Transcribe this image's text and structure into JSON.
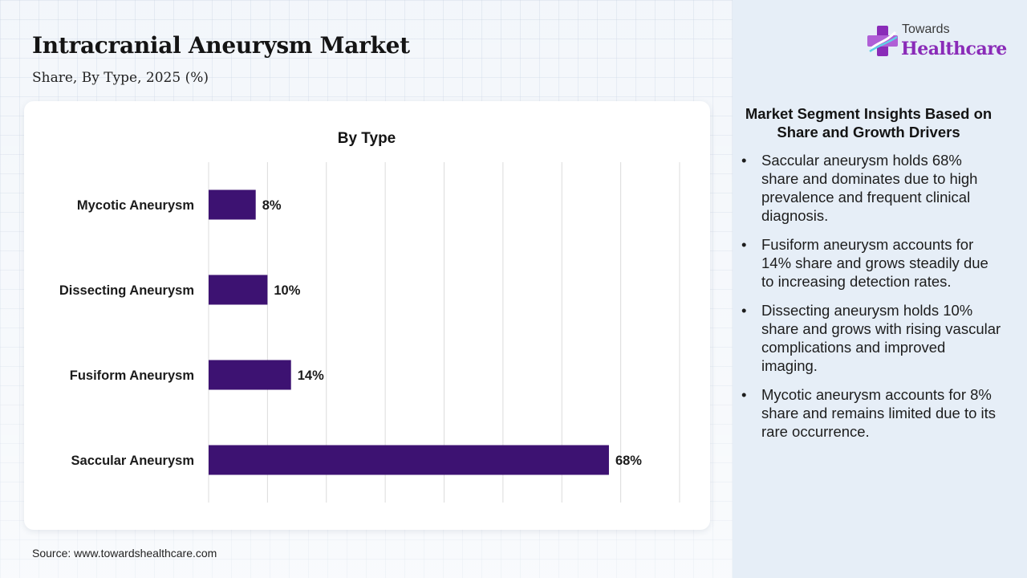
{
  "header": {
    "title": "Intracranial Aneurysm Market",
    "subtitle": "Share, By Type, 2025 (%)"
  },
  "logo": {
    "line1": "Towards",
    "line2": "Healthcare",
    "icon": "medical-cross-logo-icon"
  },
  "chart_data": {
    "type": "bar",
    "orientation": "horizontal",
    "title": "By Type",
    "categories": [
      "Mycotic Aneurysm",
      "Dissecting Aneurysm",
      "Fusiform Aneurysm",
      "Saccular Aneurysm"
    ],
    "values": [
      8,
      10,
      14,
      68
    ],
    "value_labels": [
      "8%",
      "10%",
      "14%",
      "68%"
    ],
    "xlim": [
      0,
      80
    ],
    "grid": true,
    "bar_color": "#3d1272"
  },
  "insights": {
    "title": "Market Segment Insights Based on Share and Growth Drivers",
    "bullet_char": "•",
    "items": [
      "Saccular aneurysm holds 68% share and dominates due to high prevalence and frequent clinical diagnosis.",
      "Fusiform aneurysm accounts for 14% share and grows steadily due to increasing detection rates.",
      "Dissecting aneurysm holds 10% share and grows with rising vascular complications and improved imaging.",
      "Mycotic aneurysm accounts for 8% share and remains limited due to its rare occurrence."
    ]
  },
  "footer": {
    "source": "Source: www.towardshealthcare.com"
  },
  "colors": {
    "bar": "#3d1272",
    "brand": "#8a2bb8",
    "panel": "#e6eef7"
  }
}
